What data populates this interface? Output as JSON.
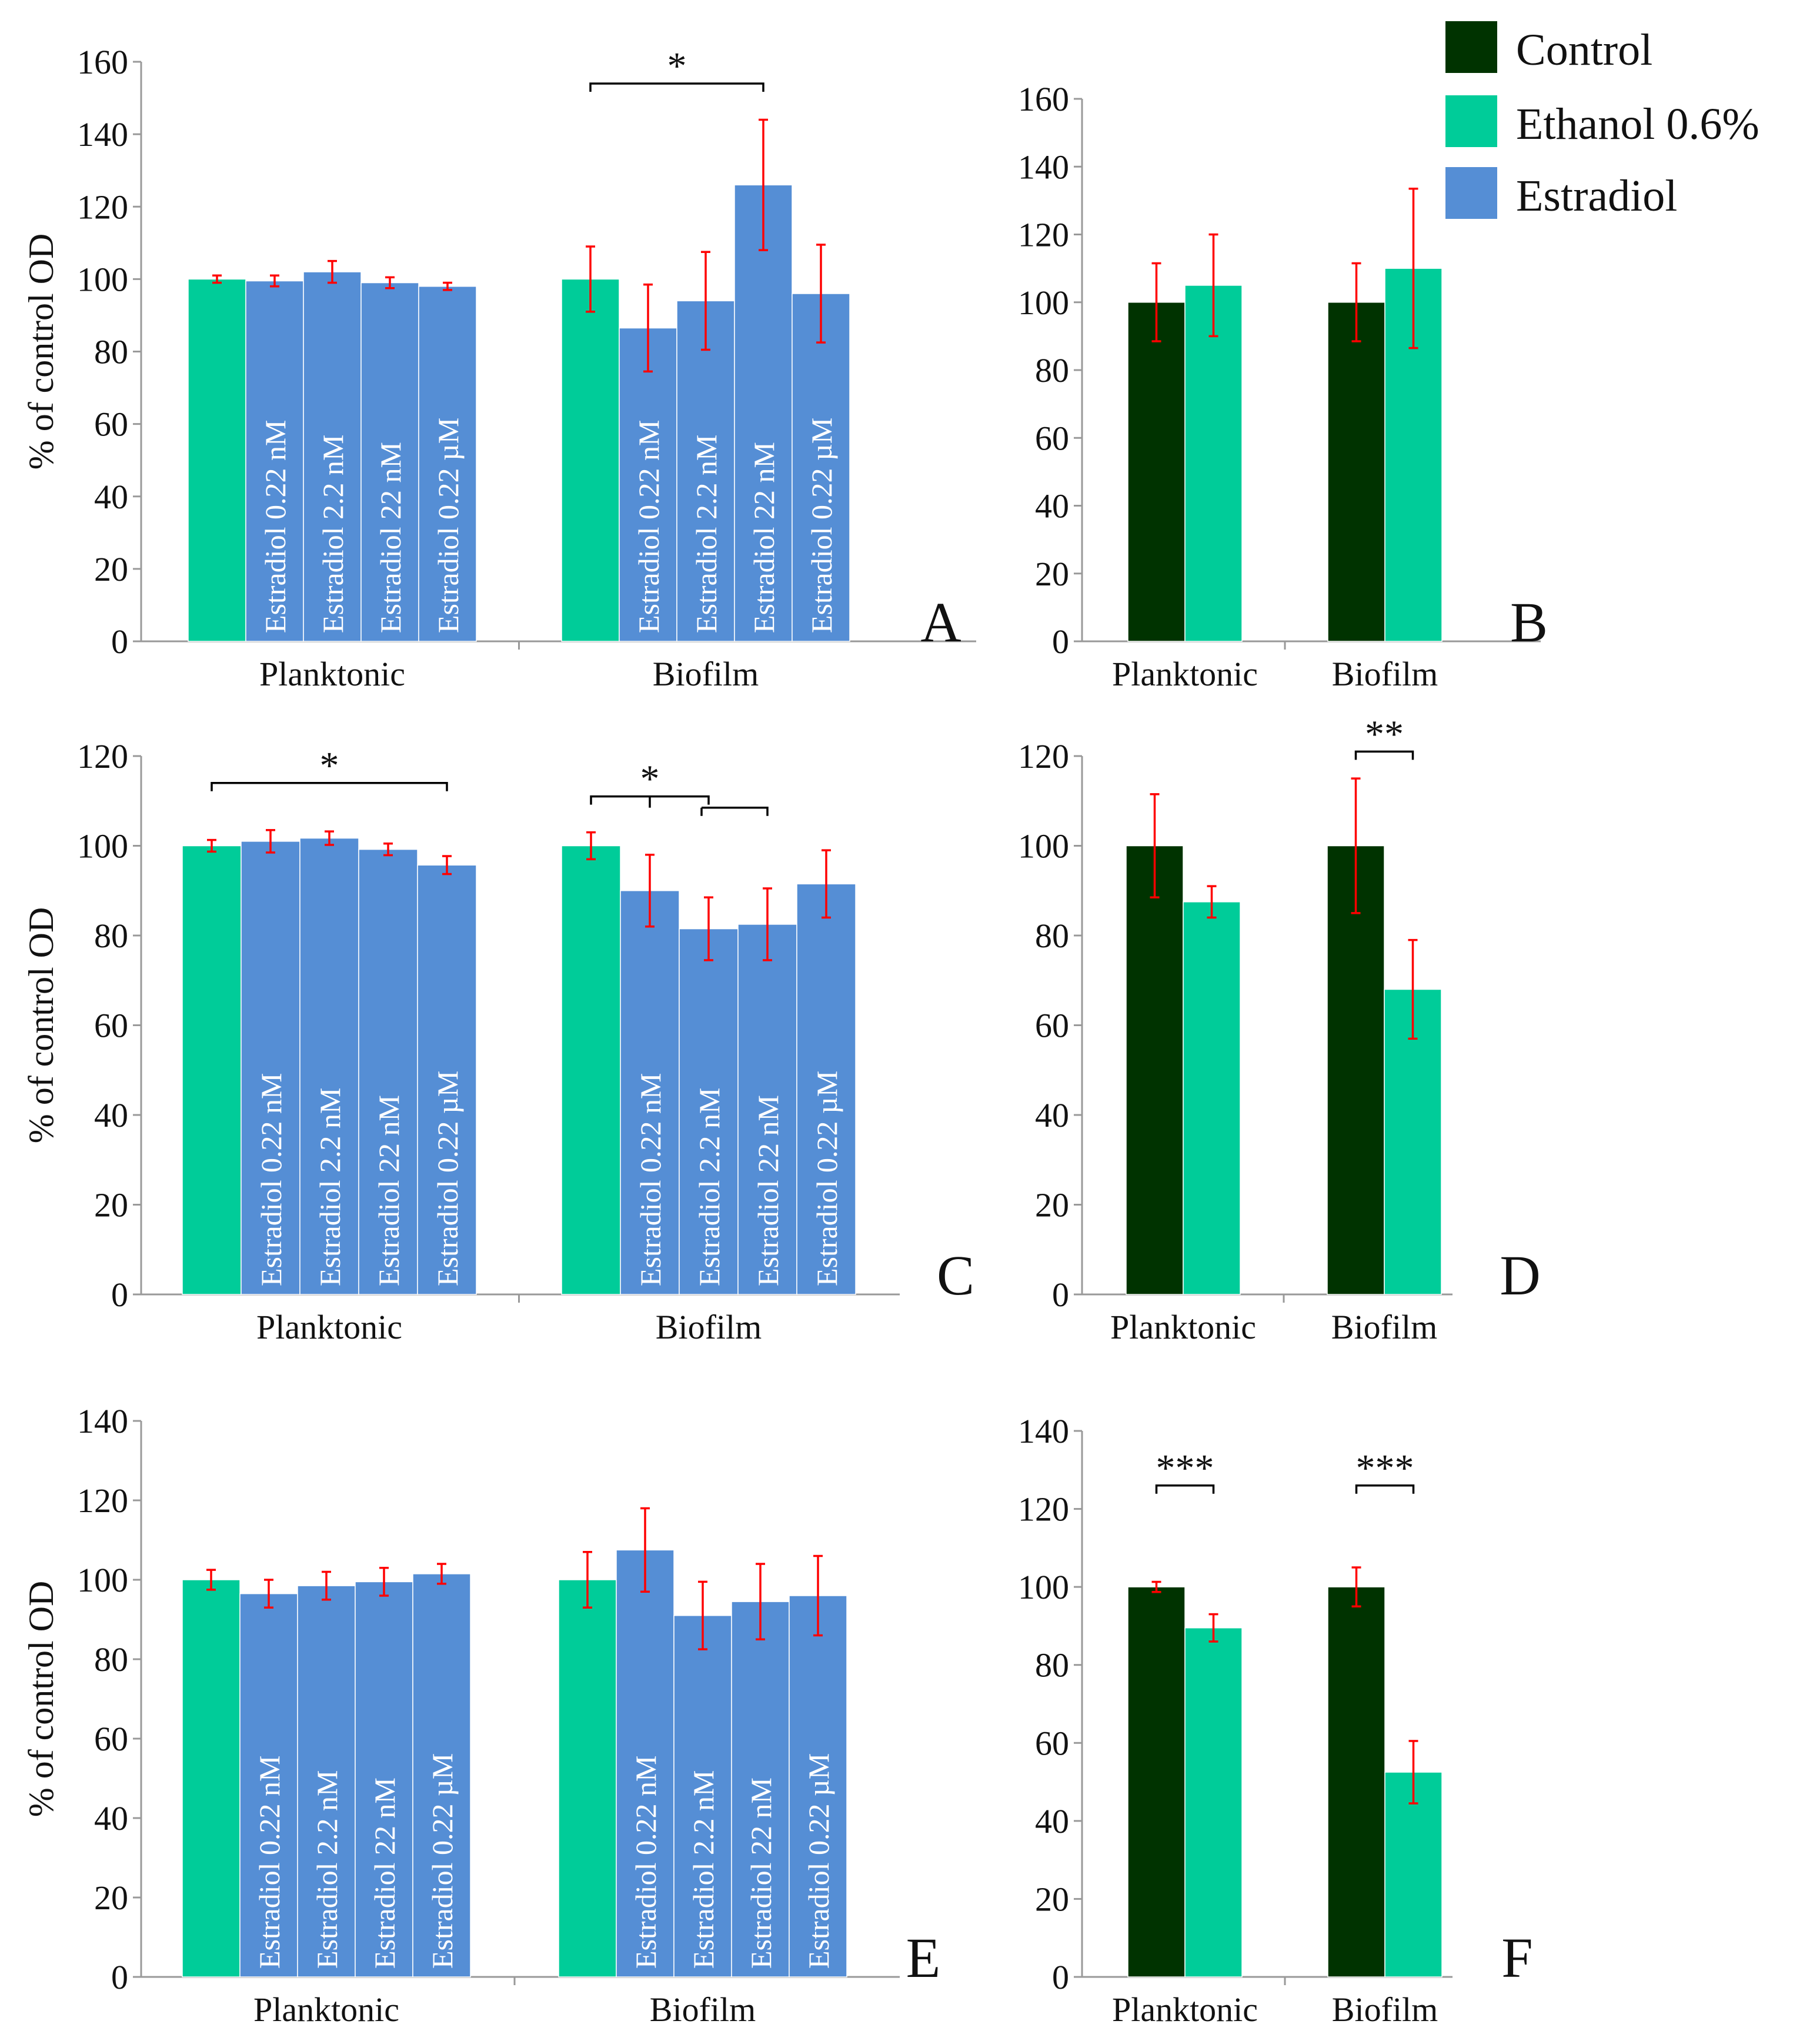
{
  "colors": {
    "control": "#003300",
    "ethanol": "#00CC99",
    "estradiol": "#558ED5",
    "error_bar": "#FF0000",
    "axis": "#999999",
    "text": "#111111"
  },
  "legend": {
    "items": [
      {
        "label": "Control",
        "color": "#003300"
      },
      {
        "label": "Ethanol 0.6%",
        "color": "#00CC99"
      },
      {
        "label": "Estradiol",
        "color": "#558ED5"
      }
    ]
  },
  "chart_data": [
    {
      "id": "A",
      "type": "bar",
      "panel_label": "A",
      "ylabel": "% of control OD",
      "ylim": [
        0,
        160
      ],
      "yticks": [
        0,
        20,
        40,
        60,
        80,
        100,
        120,
        140,
        160
      ],
      "groups": [
        {
          "label": "Planktonic",
          "bars": [
            {
              "series": "Ethanol 0.6%",
              "value": 100,
              "error": 1,
              "inner_label": ""
            },
            {
              "series": "Estradiol",
              "value": 99.5,
              "error": 1.5,
              "inner_label": "Estradiol  0.22 nM"
            },
            {
              "series": "Estradiol",
              "value": 102,
              "error": 3,
              "inner_label": "Estradiol  2.2 nM"
            },
            {
              "series": "Estradiol",
              "value": 99,
              "error": 1.5,
              "inner_label": "Estradiol  22 nM"
            },
            {
              "series": "Estradiol",
              "value": 98,
              "error": 1,
              "inner_label": "Estradiol  0.22 µM"
            }
          ]
        },
        {
          "label": "Biofilm",
          "bars": [
            {
              "series": "Ethanol 0.6%",
              "value": 100,
              "error": 9,
              "inner_label": ""
            },
            {
              "series": "Estradiol",
              "value": 86.5,
              "error": 12,
              "inner_label": "Estradiol  0.22 nM"
            },
            {
              "series": "Estradiol",
              "value": 94,
              "error": 13.5,
              "inner_label": "Estradiol  2.2 nM"
            },
            {
              "series": "Estradiol",
              "value": 126,
              "error": 18,
              "inner_label": "Estradiol  22 nM"
            },
            {
              "series": "Estradiol",
              "value": 96,
              "error": 13.5,
              "inner_label": "Estradiol  0.22 µM"
            }
          ]
        }
      ],
      "significance": [
        {
          "group": 1,
          "from": 0,
          "to": 3,
          "y": 154,
          "label": "*"
        }
      ]
    },
    {
      "id": "B",
      "type": "bar",
      "panel_label": "B",
      "ylabel": "",
      "ylim": [
        0,
        160
      ],
      "yticks": [
        0,
        20,
        40,
        60,
        80,
        100,
        120,
        140,
        160
      ],
      "groups": [
        {
          "label": "Planktonic",
          "bars": [
            {
              "series": "Control",
              "value": 100,
              "error": 11.5,
              "inner_label": ""
            },
            {
              "series": "Ethanol 0.6%",
              "value": 105,
              "error": 15,
              "inner_label": ""
            }
          ]
        },
        {
          "label": "Biofilm",
          "bars": [
            {
              "series": "Control",
              "value": 100,
              "error": 11.5,
              "inner_label": ""
            },
            {
              "series": "Ethanol 0.6%",
              "value": 110,
              "error": 23.5,
              "inner_label": ""
            }
          ]
        }
      ],
      "significance": []
    },
    {
      "id": "C",
      "type": "bar",
      "panel_label": "C",
      "ylabel": "% of control OD",
      "ylim": [
        0,
        120
      ],
      "yticks": [
        0,
        20,
        40,
        60,
        80,
        100,
        120
      ],
      "groups": [
        {
          "label": "Planktonic",
          "bars": [
            {
              "series": "Ethanol 0.6%",
              "value": 100,
              "error": 1.3,
              "inner_label": ""
            },
            {
              "series": "Estradiol",
              "value": 101,
              "error": 2.5,
              "inner_label": "Estradiol  0.22 nM"
            },
            {
              "series": "Estradiol",
              "value": 101.7,
              "error": 1.5,
              "inner_label": "Estradiol  2.2 nM"
            },
            {
              "series": "Estradiol",
              "value": 99.2,
              "error": 1.3,
              "inner_label": "Estradiol  22 nM"
            },
            {
              "series": "Estradiol",
              "value": 95.7,
              "error": 2,
              "inner_label": "Estradiol  0.22 µM"
            }
          ]
        },
        {
          "label": "Biofilm",
          "bars": [
            {
              "series": "Ethanol 0.6%",
              "value": 100,
              "error": 3,
              "inner_label": ""
            },
            {
              "series": "Estradiol",
              "value": 90,
              "error": 8,
              "inner_label": "Estradiol  0.22 nM"
            },
            {
              "series": "Estradiol",
              "value": 81.5,
              "error": 7,
              "inner_label": "Estradiol  2.2 nM"
            },
            {
              "series": "Estradiol",
              "value": 82.5,
              "error": 8,
              "inner_label": "Estradiol  22 nM"
            },
            {
              "series": "Estradiol",
              "value": 91.5,
              "error": 7.5,
              "inner_label": "Estradiol  0.22 µM"
            }
          ]
        }
      ],
      "significance": [
        {
          "group": 0,
          "from": 0,
          "to": 4,
          "y": 114,
          "label": "*"
        },
        {
          "group": 1,
          "from": 0,
          "to": 2,
          "y": 111,
          "label": "*",
          "nested": {
            "to": 3,
            "drop": 2.5
          }
        }
      ]
    },
    {
      "id": "D",
      "type": "bar",
      "panel_label": "D",
      "ylabel": "",
      "ylim": [
        0,
        120
      ],
      "yticks": [
        0,
        20,
        40,
        60,
        80,
        100,
        120
      ],
      "groups": [
        {
          "label": "Planktonic",
          "bars": [
            {
              "series": "Control",
              "value": 100,
              "error": 11.5,
              "inner_label": ""
            },
            {
              "series": "Ethanol 0.6%",
              "value": 87.5,
              "error": 3.5,
              "inner_label": ""
            }
          ]
        },
        {
          "label": "Biofilm",
          "bars": [
            {
              "series": "Control",
              "value": 100,
              "error": 15,
              "inner_label": ""
            },
            {
              "series": "Ethanol 0.6%",
              "value": 68,
              "error": 11,
              "inner_label": ""
            }
          ]
        }
      ],
      "significance": [
        {
          "group": 1,
          "from": 0,
          "to": 1,
          "y": 121,
          "label": "**"
        }
      ]
    },
    {
      "id": "E",
      "type": "bar",
      "panel_label": "E",
      "ylabel": "% of control OD",
      "ylim": [
        0,
        140
      ],
      "yticks": [
        0,
        20,
        40,
        60,
        80,
        100,
        120,
        140
      ],
      "groups": [
        {
          "label": "Planktonic",
          "bars": [
            {
              "series": "Ethanol 0.6%",
              "value": 100,
              "error": 2.5,
              "inner_label": ""
            },
            {
              "series": "Estradiol",
              "value": 96.5,
              "error": 3.5,
              "inner_label": "Estradiol  0.22 nM"
            },
            {
              "series": "Estradiol",
              "value": 98.5,
              "error": 3.5,
              "inner_label": "Estradiol  2.2 nM"
            },
            {
              "series": "Estradiol",
              "value": 99.5,
              "error": 3.5,
              "inner_label": "Estradiol  22 nM"
            },
            {
              "series": "Estradiol",
              "value": 101.5,
              "error": 2.5,
              "inner_label": "Estradiol  0.22 µM"
            }
          ]
        },
        {
          "label": "Biofilm",
          "bars": [
            {
              "series": "Ethanol 0.6%",
              "value": 100,
              "error": 7,
              "inner_label": ""
            },
            {
              "series": "Estradiol",
              "value": 107.5,
              "error": 10.5,
              "inner_label": "Estradiol  0.22 nM"
            },
            {
              "series": "Estradiol",
              "value": 91,
              "error": 8.5,
              "inner_label": "Estradiol  2.2 nM"
            },
            {
              "series": "Estradiol",
              "value": 94.5,
              "error": 9.5,
              "inner_label": "Estradiol  22 nM"
            },
            {
              "series": "Estradiol",
              "value": 96,
              "error": 10,
              "inner_label": "Estradiol  0.22 µM"
            }
          ]
        }
      ],
      "significance": []
    },
    {
      "id": "F",
      "type": "bar",
      "panel_label": "F",
      "ylabel": "",
      "ylim": [
        0,
        140
      ],
      "yticks": [
        0,
        20,
        40,
        60,
        80,
        100,
        120,
        140
      ],
      "groups": [
        {
          "label": "Planktonic",
          "bars": [
            {
              "series": "Control",
              "value": 100,
              "error": 1.3,
              "inner_label": ""
            },
            {
              "series": "Ethanol 0.6%",
              "value": 89.5,
              "error": 3.5,
              "inner_label": ""
            }
          ]
        },
        {
          "label": "Biofilm",
          "bars": [
            {
              "series": "Control",
              "value": 100,
              "error": 5,
              "inner_label": ""
            },
            {
              "series": "Ethanol 0.6%",
              "value": 52.5,
              "error": 8,
              "inner_label": ""
            }
          ]
        }
      ],
      "significance": [
        {
          "group": 0,
          "from": 0,
          "to": 1,
          "y": 126,
          "label": "***"
        },
        {
          "group": 1,
          "from": 0,
          "to": 1,
          "y": 126,
          "label": "***"
        }
      ]
    }
  ]
}
